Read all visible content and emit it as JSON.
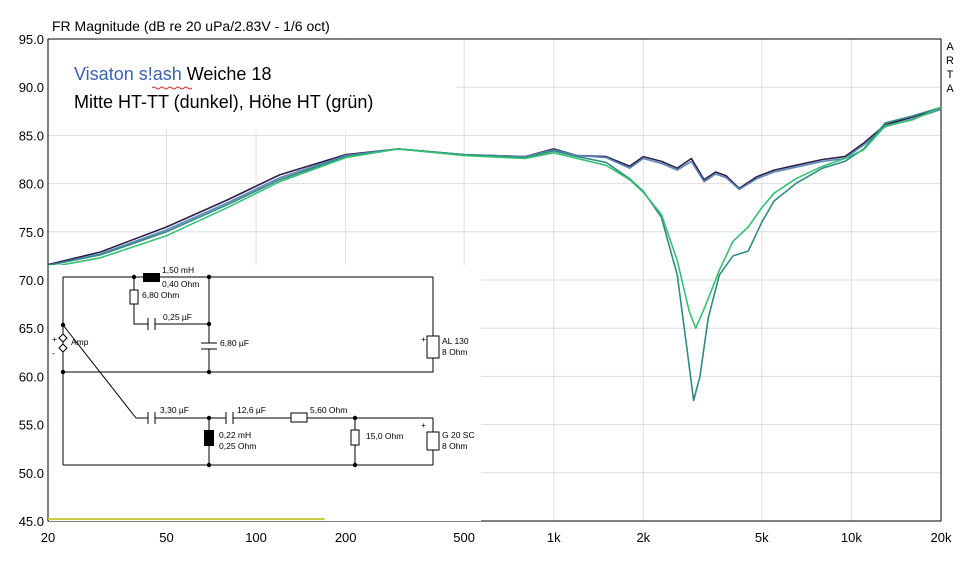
{
  "chart_data": {
    "type": "line",
    "title": "FR Magnitude (dB re 20 uPa/2.83V - 1/6 oct)",
    "side_label": [
      "A",
      "R",
      "T",
      "A"
    ],
    "xscale": "log",
    "xlim": [
      20,
      20000
    ],
    "ylim": [
      45,
      95
    ],
    "x_ticks": [
      {
        "value": 20,
        "label": "20"
      },
      {
        "value": 50,
        "label": "50"
      },
      {
        "value": 100,
        "label": "100"
      },
      {
        "value": 200,
        "label": "200"
      },
      {
        "value": 500,
        "label": "500"
      },
      {
        "value": 1000,
        "label": "1k"
      },
      {
        "value": 2000,
        "label": "2k"
      },
      {
        "value": 5000,
        "label": "5k"
      },
      {
        "value": 10000,
        "label": "10k"
      },
      {
        "value": 20000,
        "label": "20k"
      }
    ],
    "y_ticks": [
      {
        "value": 45,
        "label": "45.0"
      },
      {
        "value": 50,
        "label": "50.0"
      },
      {
        "value": 55,
        "label": "55.0"
      },
      {
        "value": 60,
        "label": "60.0"
      },
      {
        "value": 65,
        "label": "65.0"
      },
      {
        "value": 70,
        "label": "70.0"
      },
      {
        "value": 75,
        "label": "75.0"
      },
      {
        "value": 80,
        "label": "80.0"
      },
      {
        "value": 85,
        "label": "85.0"
      },
      {
        "value": 90,
        "label": "90.0"
      },
      {
        "value": 95,
        "label": "95.0"
      }
    ],
    "grid": true,
    "annotation": {
      "brand": "Visaton s!ash",
      "line1_rest": " Weiche 18",
      "line2": "Mitte HT-TT (dunkel), Höhe HT (grün)"
    },
    "series": [
      {
        "color": "#2a1f4a",
        "points": [
          [
            20,
            71.6
          ],
          [
            30,
            72.9
          ],
          [
            50,
            75.5
          ],
          [
            80,
            78.3
          ],
          [
            120,
            80.9
          ],
          [
            200,
            83.0
          ],
          [
            300,
            83.6
          ],
          [
            500,
            83.0
          ],
          [
            800,
            82.8
          ],
          [
            1000,
            83.6
          ],
          [
            1200,
            82.9
          ],
          [
            1500,
            82.8
          ],
          [
            1800,
            81.8
          ],
          [
            2000,
            82.8
          ],
          [
            2300,
            82.3
          ],
          [
            2600,
            81.6
          ],
          [
            2900,
            82.6
          ],
          [
            3200,
            80.4
          ],
          [
            3500,
            81.2
          ],
          [
            3800,
            80.8
          ],
          [
            4200,
            79.5
          ],
          [
            4800,
            80.7
          ],
          [
            5500,
            81.4
          ],
          [
            6500,
            81.9
          ],
          [
            8000,
            82.5
          ],
          [
            9500,
            82.8
          ],
          [
            11000,
            84.2
          ],
          [
            13000,
            86.1
          ],
          [
            16000,
            86.9
          ],
          [
            20000,
            87.8
          ]
        ]
      },
      {
        "color": "#5e86b8",
        "points": [
          [
            20,
            71.5
          ],
          [
            30,
            72.7
          ],
          [
            50,
            75.2
          ],
          [
            80,
            78.0
          ],
          [
            120,
            80.6
          ],
          [
            200,
            82.9
          ],
          [
            300,
            83.6
          ],
          [
            500,
            83.0
          ],
          [
            800,
            82.8
          ],
          [
            1000,
            83.5
          ],
          [
            1200,
            82.9
          ],
          [
            1500,
            82.7
          ],
          [
            1800,
            81.6
          ],
          [
            2000,
            82.6
          ],
          [
            2300,
            82.1
          ],
          [
            2600,
            81.4
          ],
          [
            2900,
            82.3
          ],
          [
            3200,
            80.2
          ],
          [
            3500,
            81.0
          ],
          [
            3800,
            80.6
          ],
          [
            4200,
            79.4
          ],
          [
            4800,
            80.5
          ],
          [
            5500,
            81.2
          ],
          [
            6500,
            81.7
          ],
          [
            8000,
            82.3
          ],
          [
            9500,
            82.6
          ],
          [
            11000,
            84.0
          ],
          [
            13000,
            85.9
          ],
          [
            16000,
            86.7
          ],
          [
            20000,
            87.7
          ]
        ]
      },
      {
        "color": "#2f8b84",
        "points": [
          [
            20,
            71.5
          ],
          [
            30,
            72.6
          ],
          [
            50,
            75.0
          ],
          [
            80,
            77.8
          ],
          [
            120,
            80.4
          ],
          [
            200,
            82.8
          ],
          [
            300,
            83.6
          ],
          [
            500,
            83.0
          ],
          [
            800,
            82.7
          ],
          [
            1000,
            83.4
          ],
          [
            1200,
            82.8
          ],
          [
            1500,
            82.2
          ],
          [
            1800,
            80.5
          ],
          [
            2000,
            79.2
          ],
          [
            2300,
            76.5
          ],
          [
            2600,
            70.5
          ],
          [
            2800,
            63.0
          ],
          [
            2950,
            57.5
          ],
          [
            3100,
            60.0
          ],
          [
            3300,
            66.0
          ],
          [
            3600,
            70.5
          ],
          [
            4000,
            72.5
          ],
          [
            4500,
            73.0
          ],
          [
            5000,
            76.0
          ],
          [
            5500,
            78.2
          ],
          [
            6500,
            80.0
          ],
          [
            8000,
            81.6
          ],
          [
            9500,
            82.3
          ],
          [
            11000,
            83.6
          ],
          [
            13000,
            86.3
          ],
          [
            16000,
            87.0
          ],
          [
            20000,
            87.9
          ]
        ]
      },
      {
        "color": "#35c173",
        "points": [
          [
            20,
            71.3
          ],
          [
            30,
            72.3
          ],
          [
            50,
            74.6
          ],
          [
            80,
            77.5
          ],
          [
            120,
            80.2
          ],
          [
            200,
            82.7
          ],
          [
            300,
            83.6
          ],
          [
            500,
            82.9
          ],
          [
            800,
            82.6
          ],
          [
            1000,
            83.2
          ],
          [
            1200,
            82.6
          ],
          [
            1500,
            81.9
          ],
          [
            1800,
            80.4
          ],
          [
            2000,
            79.1
          ],
          [
            2300,
            76.8
          ],
          [
            2600,
            72.0
          ],
          [
            2850,
            66.8
          ],
          [
            3000,
            65.0
          ],
          [
            3200,
            67.0
          ],
          [
            3600,
            71.0
          ],
          [
            4000,
            74.0
          ],
          [
            4500,
            75.5
          ],
          [
            5000,
            77.5
          ],
          [
            5500,
            79.0
          ],
          [
            6500,
            80.5
          ],
          [
            8000,
            81.8
          ],
          [
            9500,
            82.6
          ],
          [
            11000,
            83.5
          ],
          [
            13000,
            86.0
          ],
          [
            16000,
            86.6
          ],
          [
            20000,
            87.9
          ]
        ]
      }
    ],
    "yellow_bar": {
      "x_start": 20,
      "x_end": 170,
      "y": 45.2,
      "color": "#c6cc3a"
    }
  },
  "crossover": {
    "input_label": "Amp",
    "input_plus": "+",
    "input_minus": "-",
    "mid": {
      "inductor": [
        "1,50 mH",
        "0,40 Ohm"
      ],
      "resistor": "6,80 Ohm",
      "cap_series": "0,25 µF",
      "cap_shunt": "6,80 µF",
      "driver": [
        "AL 130",
        "8 Ohm"
      ]
    },
    "tweeter": {
      "cap1": "3,30 µF",
      "cap2": "12,6 µF",
      "resistor_series": "5,60 Ohm",
      "inductor": [
        "0,22 mH",
        "0,25 Ohm"
      ],
      "resistor_shunt": "15,0 Ohm",
      "driver": [
        "G 20 SC",
        "8 Ohm"
      ]
    }
  }
}
